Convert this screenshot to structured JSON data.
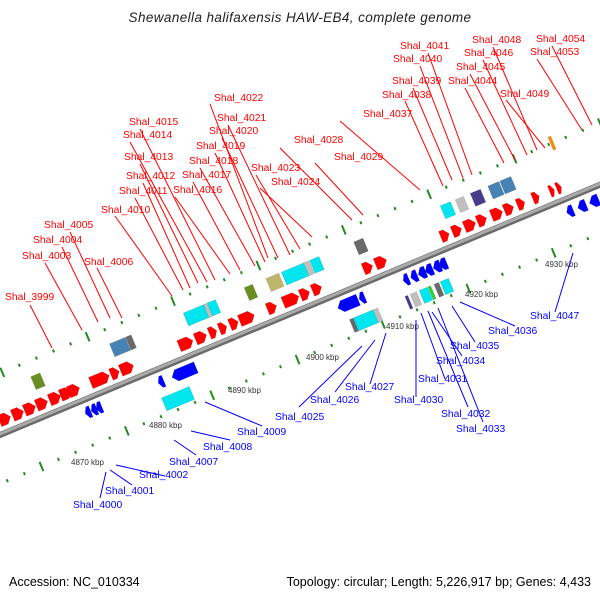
{
  "title": "Shewanella halifaxensis HAW-EB4, complete genome",
  "footer": {
    "accession": "Accession: NC_010334",
    "topology": "Topology: circular; Length: 5,226,917 bp; Genes: 4,433"
  },
  "colors": {
    "forward": "#ff0000",
    "reverse": "#0000ff",
    "backbone": "#999999",
    "ticks": "#228b22"
  },
  "forward_genes": [
    "Shal_3999",
    "Shal_4003",
    "Shal_4004",
    "Shal_4005",
    "Shal_4006",
    "Shal_4010",
    "Shal_4011",
    "Shal_4012",
    "Shal_4013",
    "Shal_4014",
    "Shal_4015",
    "Shal_4016",
    "Shal_4017",
    "Shal_4018",
    "Shal_4019",
    "Shal_4020",
    "Shal_4021",
    "Shal_4022",
    "Shal_4023",
    "Shal_4024",
    "Shal_4028",
    "Shal_4029",
    "Shal_4037",
    "Shal_4038",
    "Shal_4039",
    "Shal_4040",
    "Shal_4041",
    "Shal_4044",
    "Shal_4045",
    "Shal_4046",
    "Shal_4048",
    "Shal_4049",
    "Shal_4053",
    "Shal_4054"
  ],
  "reverse_genes": [
    "Shal_4000",
    "Shal_4001",
    "Shal_4002",
    "Shal_4007",
    "Shal_4008",
    "Shal_4009",
    "Shal_4025",
    "Shal_4026",
    "Shal_4027",
    "Shal_4030",
    "Shal_4031",
    "Shal_4032",
    "Shal_4033",
    "Shal_4034",
    "Shal_4035",
    "Shal_4036",
    "Shal_4047"
  ],
  "scale_labels": [
    "4870 kbp",
    "4880 kbp",
    "4890 kbp",
    "4900 kbp",
    "4910 kbp",
    "4920 kbp",
    "4930 kbp"
  ]
}
